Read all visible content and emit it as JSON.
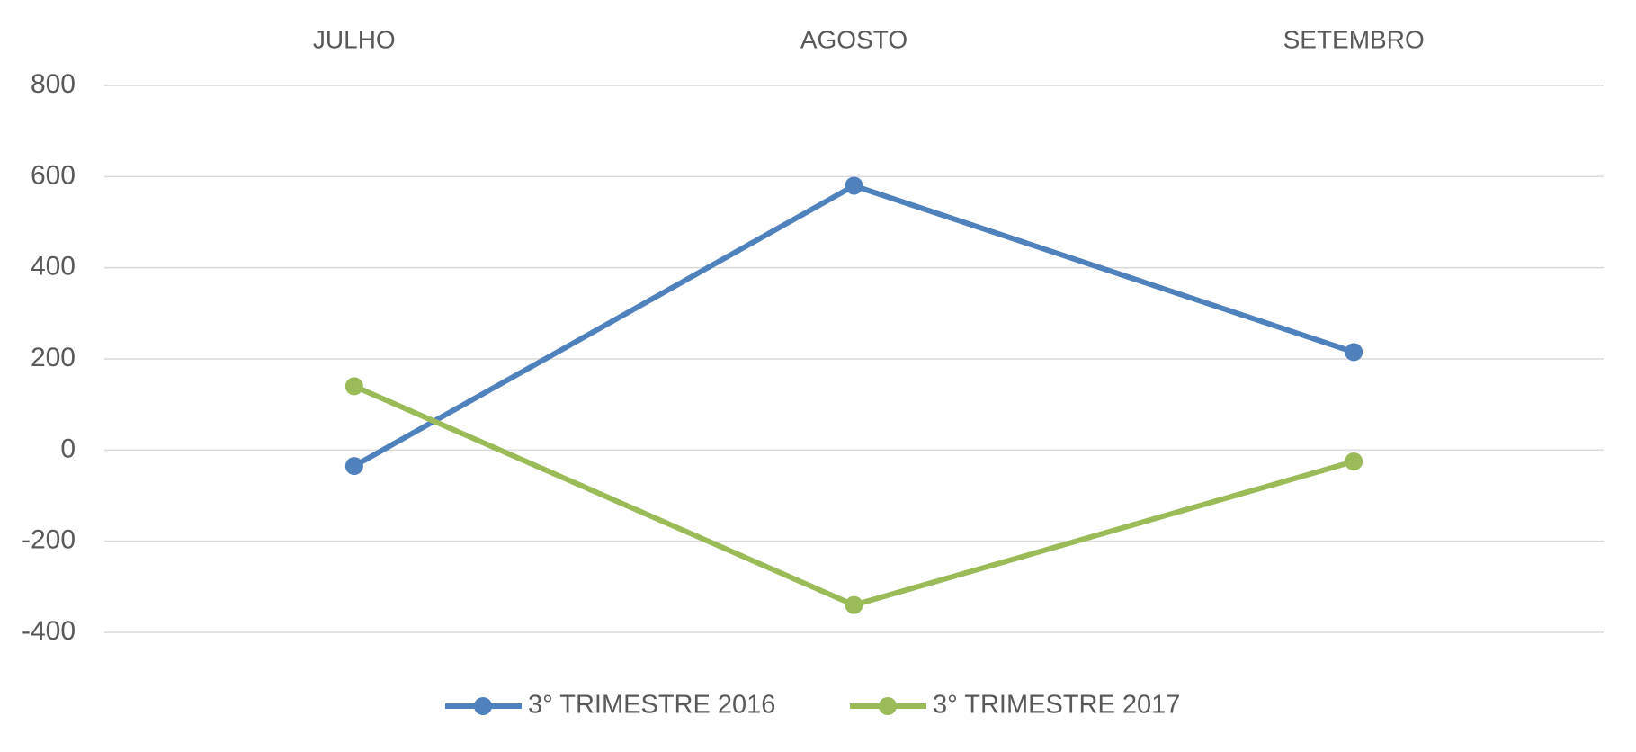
{
  "chart_data": {
    "type": "line",
    "categories": [
      "JULHO",
      "AGOSTO",
      "SETEMBRO"
    ],
    "series": [
      {
        "name": "3° TRIMESTRE 2016",
        "color": "#4f81bd",
        "values": [
          -35,
          580,
          215
        ]
      },
      {
        "name": "3° TRIMESTRE 2017",
        "color": "#9bbb59",
        "values": [
          140,
          -340,
          -25
        ]
      }
    ],
    "ylim": [
      -400,
      800
    ],
    "yticks": [
      -400,
      -200,
      0,
      200,
      400,
      600,
      800
    ],
    "grid": true,
    "legend": "bottom",
    "category_axis": "top"
  }
}
